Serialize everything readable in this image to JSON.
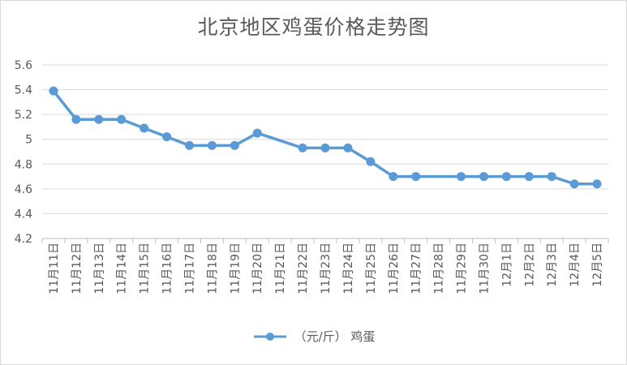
{
  "chart_data": {
    "type": "line",
    "title": "北京地区鸡蛋价格走势图",
    "categories": [
      "11月11日",
      "11月12日",
      "11月13日",
      "11月14日",
      "11月15日",
      "11月16日",
      "11月17日",
      "11月18日",
      "11月19日",
      "11月20日",
      "11月21日",
      "11月22日",
      "11月23日",
      "11月24日",
      "11月25日",
      "11月26日",
      "11月27日",
      "11月28日",
      "11月29日",
      "11月30日",
      "12月1日",
      "12月2日",
      "12月3日",
      "12月4日",
      "12月5日"
    ],
    "series": [
      {
        "name": "（元/斤） 鸡蛋",
        "values": [
          5.39,
          5.16,
          5.16,
          5.16,
          5.09,
          5.02,
          4.95,
          4.95,
          4.95,
          5.05,
          null,
          4.93,
          4.93,
          4.93,
          4.82,
          4.7,
          4.7,
          null,
          4.7,
          4.7,
          4.7,
          4.7,
          4.7,
          4.64,
          4.64
        ]
      }
    ],
    "yticks": [
      "4.2",
      "4.4",
      "4.6",
      "4.8",
      "5",
      "5.2",
      "5.4",
      "5.6"
    ],
    "ylim": [
      4.2,
      5.6
    ],
    "grid": true,
    "legend_position": "bottom",
    "line_color": "#5b9bd5"
  }
}
